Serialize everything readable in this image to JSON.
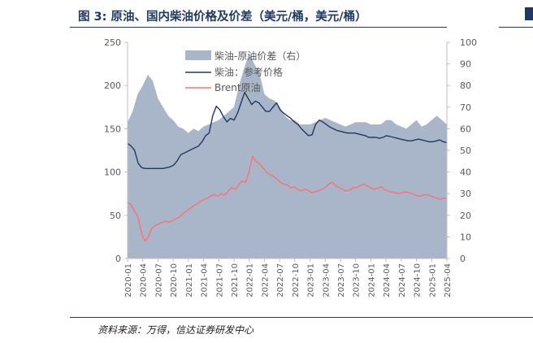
{
  "figure": {
    "title": "图 3:  原油、国内柴油价格及价差（美元/桶，美元/桶）",
    "source": "资料来源：万得，信达证券研发中心"
  },
  "chart_data": {
    "type": "line",
    "title": "图 3:  原油、国内柴油价格及价差（美元/桶，美元/桶）",
    "x_labels": [
      "2020-01",
      "2020-04",
      "2020-07",
      "2020-10",
      "2021-01",
      "2021-04",
      "2021-07",
      "2021-10",
      "2022-01",
      "2022-04",
      "2022-07",
      "2022-10",
      "2023-01",
      "2023-04",
      "2023-07",
      "2023-10",
      "2024-01",
      "2024-04",
      "2024-07",
      "2024-10",
      "2025-01",
      "2025-04"
    ],
    "left_axis": {
      "ylim": [
        0,
        250
      ],
      "ticks": [
        0,
        50,
        100,
        150,
        200,
        250
      ]
    },
    "right_axis": {
      "ylim": [
        0,
        100
      ],
      "ticks": [
        0,
        10,
        20,
        30,
        40,
        50,
        60,
        70,
        80,
        90,
        100
      ]
    },
    "series": [
      {
        "name": "柴油-原油价差（右）",
        "type": "area",
        "axis": "right",
        "color": "#a9b5c8",
        "values": [
          63,
          68,
          76,
          80,
          85,
          82,
          74,
          70,
          66,
          64,
          61,
          60,
          58,
          60,
          59,
          61,
          62,
          63,
          64,
          66,
          68,
          70,
          80,
          88,
          95,
          90,
          86,
          76,
          74,
          73,
          70,
          66,
          64,
          64,
          62,
          62,
          62,
          63,
          64,
          65,
          64,
          63,
          62,
          61,
          62,
          63,
          63,
          63,
          62,
          62,
          62,
          64,
          64,
          62,
          61,
          60,
          62,
          64,
          61,
          62,
          64,
          66,
          64,
          62
        ]
      },
      {
        "name": "柴油：参考价格",
        "type": "line",
        "axis": "left",
        "color": "#203864",
        "values": [
          133,
          130,
          125,
          110,
          105,
          104,
          104,
          104,
          104,
          104,
          104,
          105,
          106,
          108,
          113,
          120,
          122,
          124,
          126,
          128,
          130,
          135,
          142,
          145,
          165,
          176,
          172,
          164,
          158,
          162,
          160,
          168,
          180,
          192,
          185,
          178,
          182,
          180,
          175,
          170,
          170,
          175,
          180,
          172,
          168,
          165,
          162,
          158,
          155,
          150,
          146,
          142,
          143,
          155,
          160,
          158,
          155,
          152,
          150,
          148,
          147,
          146,
          145,
          145,
          145,
          144,
          143,
          142,
          140,
          140,
          140,
          139,
          140,
          142,
          141,
          140,
          139,
          138,
          137,
          136,
          136,
          137,
          138,
          137,
          136,
          135,
          135,
          136,
          137,
          135,
          134
        ]
      },
      {
        "name": "Brent原油",
        "type": "line",
        "axis": "left",
        "color": "#ff6f6f",
        "values": [
          65,
          62,
          55,
          48,
          30,
          20,
          25,
          35,
          38,
          40,
          42,
          43,
          42,
          44,
          46,
          48,
          52,
          55,
          58,
          61,
          63,
          66,
          68,
          70,
          72,
          74,
          72,
          75,
          73,
          78,
          82,
          80,
          85,
          90,
          88,
          100,
          118,
          112,
          110,
          105,
          100,
          97,
          95,
          92,
          88,
          86,
          85,
          82,
          83,
          80,
          78,
          80,
          79,
          76,
          77,
          78,
          80,
          82,
          86,
          88,
          84,
          82,
          80,
          78,
          79,
          82,
          82,
          84,
          86,
          84,
          82,
          80,
          81,
          83,
          80,
          78,
          77,
          76,
          75,
          76,
          77,
          76,
          75,
          73,
          72,
          73,
          74,
          73,
          71,
          70,
          68,
          70,
          69
        ]
      }
    ],
    "legend": [
      "柴油-原油价差（右）",
      "柴油：参考价格",
      "Brent原油"
    ],
    "legend_position": "top-center"
  }
}
